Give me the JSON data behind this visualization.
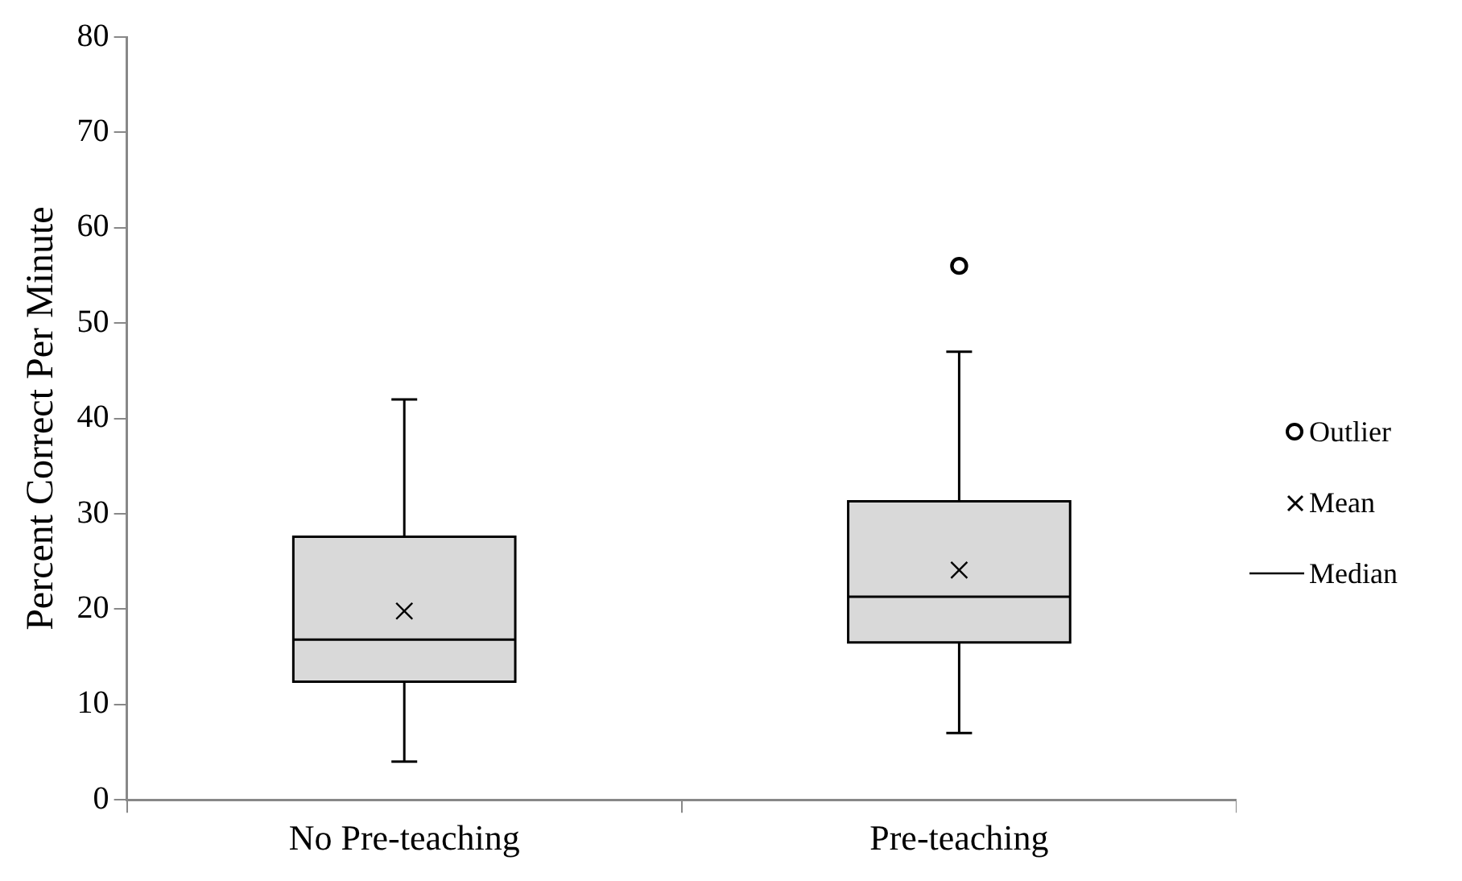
{
  "chart_data": {
    "type": "box",
    "ylabel": "Percent Correct Per Minute",
    "categories": [
      "No Pre-teaching",
      "Pre-teaching"
    ],
    "color": "#d9d9d9",
    "boxes": [
      {
        "low": 4,
        "q1": 12.4,
        "median": 16.8,
        "q3": 27.6,
        "high": 42,
        "mean": 19.8
      },
      {
        "low": 7,
        "q1": 16.5,
        "median": 21.3,
        "q3": 31.3,
        "high": 47,
        "mean": 24.1,
        "outliers": [
          56
        ]
      }
    ],
    "ylim": [
      0,
      80
    ],
    "yticks": [
      0,
      10,
      20,
      30,
      40,
      50,
      60,
      70,
      80
    ],
    "grid": false,
    "annotations": [
      "Outlier",
      "Mean",
      "Median"
    ]
  }
}
